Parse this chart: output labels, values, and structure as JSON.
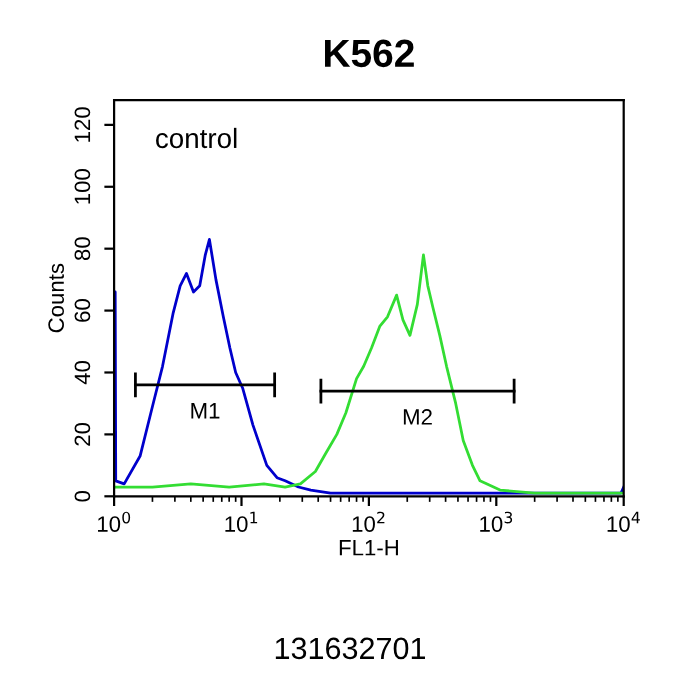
{
  "chart_data": {
    "type": "line",
    "title": "K562",
    "xlabel": "FL1-H",
    "ylabel": "Counts",
    "log": "x",
    "xlim": [
      1,
      10000
    ],
    "ylim": [
      0,
      128
    ],
    "xticks": [
      {
        "value": 1,
        "label": "10$^{0}$"
      },
      {
        "value": 10,
        "label": "10$^{1}$"
      },
      {
        "value": 100,
        "label": "10$^{2}$"
      },
      {
        "value": 1000,
        "label": "10$^{3}$"
      },
      {
        "value": 10000,
        "label": "10$^{4}$"
      }
    ],
    "yticks": [
      0,
      20,
      40,
      60,
      80,
      100,
      120
    ],
    "grid": false,
    "legend": false,
    "series": [
      {
        "color": "#0000cc",
        "x": [
          1.0,
          1.02,
          1.03,
          1.2,
          1.6,
          2.0,
          2.4,
          2.9,
          3.3,
          3.7,
          4.2,
          4.7,
          5.2,
          5.6,
          6.3,
          7.2,
          8.1,
          9.0,
          10.2,
          12.3,
          15.8,
          19,
          22,
          28,
          35,
          50,
          100,
          300,
          1000,
          3000,
          9500,
          10000
        ],
        "values": [
          66,
          66,
          5,
          4,
          13,
          29,
          42,
          59,
          68,
          72,
          66,
          68,
          78,
          83,
          70,
          58,
          48,
          40,
          35,
          23,
          10,
          6,
          5,
          3,
          2,
          1,
          1,
          1,
          1,
          1,
          1,
          3
        ]
      },
      {
        "color": "#33dd33",
        "x": [
          1.0,
          2,
          4,
          8,
          15,
          22,
          29,
          38,
          46,
          56,
          66,
          80,
          91,
          105,
          122,
          140,
          165,
          185,
          210,
          240,
          268,
          290,
          318,
          360,
          407,
          480,
          550,
          650,
          745,
          1070,
          2000,
          5000,
          10000
        ],
        "values": [
          3,
          3,
          4,
          3,
          4,
          3,
          4,
          8,
          14,
          20,
          27,
          38,
          42,
          48,
          55,
          58,
          65,
          57,
          52,
          62,
          78,
          68,
          61,
          52,
          42,
          30,
          18,
          10,
          5,
          2,
          1,
          1,
          1
        ]
      },
      {
        "color": "#000000",
        "x": [
          1.47,
          18.2
        ],
        "values": [
          36,
          36
        ],
        "errors": [
          4,
          4
        ]
      },
      {
        "color": "#000000",
        "x": [
          42,
          1380
        ],
        "values": [
          34,
          34
        ],
        "errors": [
          4,
          4
        ]
      }
    ],
    "annotations": [
      "control",
      "M1",
      "M2",
      "131632701"
    ]
  }
}
